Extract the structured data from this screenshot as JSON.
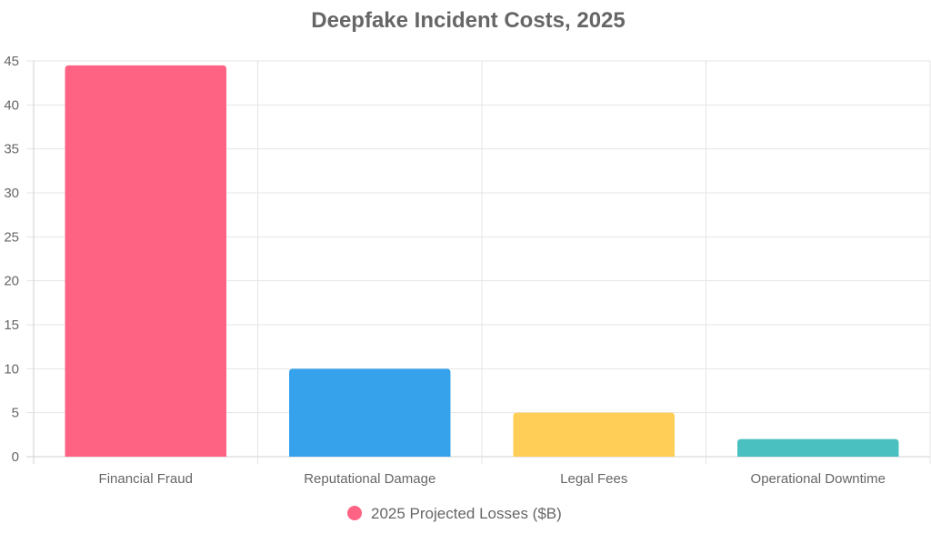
{
  "chart_data": {
    "type": "bar",
    "title": "Deepfake Incident Costs, 2025",
    "xlabel": "",
    "ylabel": "",
    "categories": [
      "Financial Fraud",
      "Reputational Damage",
      "Legal Fees",
      "Operational Downtime"
    ],
    "series": [
      {
        "name": "2025 Projected Losses ($B)",
        "values": [
          44.5,
          10,
          5,
          2
        ],
        "colors": [
          "#ff6384",
          "#36a2eb",
          "#ffce56",
          "#4bc0c0"
        ],
        "legend_color": "#ff6384"
      }
    ],
    "ylim": [
      0,
      45
    ],
    "yticks": [
      "0",
      "5",
      "10",
      "15",
      "20",
      "25",
      "30",
      "35",
      "40",
      "45"
    ],
    "grid": true,
    "legend_position": "bottom"
  }
}
